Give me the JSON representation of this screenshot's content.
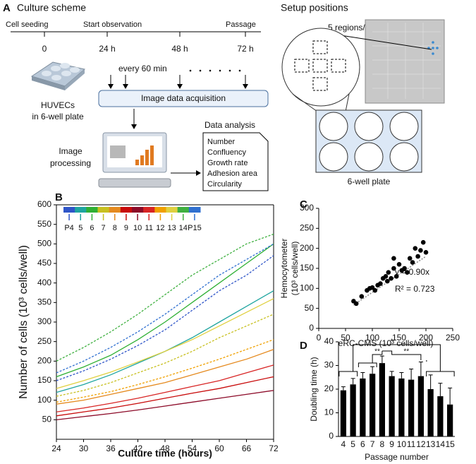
{
  "panel_a": {
    "letter": "A",
    "title": "Culture scheme",
    "timeline_labels": [
      "Cell seeding",
      "Start observation",
      "Passage"
    ],
    "times": [
      "0",
      "24 h",
      "48 h",
      "72 h"
    ],
    "interval": "every 60 min",
    "acquisition": "Image data acquisition",
    "cells": [
      "HUVECs",
      "in 6-well plate"
    ],
    "processing": [
      "Image",
      "processing"
    ],
    "analysis_title": "Data analysis",
    "analysis_items": [
      "Number",
      "Confluency",
      "Growth rate",
      "Adhesion area",
      "Circularity"
    ],
    "setup_title": "Setup positions",
    "regions": "5 regions/well",
    "plate": "6-well plate"
  },
  "chart_data": [
    {
      "type": "line",
      "letter": "B",
      "xlabel": "Culture time (hours)",
      "ylabel": "Number of cells (10³ cells/well)",
      "x": [
        24,
        30,
        36,
        42,
        48,
        54,
        60,
        66,
        72
      ],
      "xlim": [
        24,
        72
      ],
      "xticks": [
        24,
        30,
        36,
        42,
        48,
        54,
        60,
        66,
        72
      ],
      "ylim": [
        0,
        600
      ],
      "yticks": [
        50,
        100,
        150,
        200,
        250,
        300,
        350,
        400,
        450,
        500,
        550,
        600
      ],
      "series": [
        {
          "name": "P4",
          "color": "#2f55c8",
          "dashed": true,
          "values": [
            150,
            175,
            205,
            240,
            280,
            330,
            380,
            420,
            470
          ]
        },
        {
          "name": "5",
          "color": "#1fa5a0",
          "dashed": false,
          "values": [
            120,
            140,
            165,
            195,
            225,
            260,
            300,
            340,
            380
          ]
        },
        {
          "name": "6",
          "color": "#2fb034",
          "dashed": false,
          "values": [
            160,
            185,
            215,
            255,
            300,
            350,
            400,
            450,
            500
          ]
        },
        {
          "name": "7",
          "color": "#c8c020",
          "dashed": true,
          "values": [
            110,
            125,
            145,
            170,
            195,
            225,
            260,
            290,
            320
          ]
        },
        {
          "name": "8",
          "color": "#e58a1f",
          "dashed": false,
          "values": [
            90,
            100,
            115,
            130,
            145,
            165,
            185,
            205,
            230
          ]
        },
        {
          "name": "9",
          "color": "#c80a0a",
          "dashed": false,
          "values": [
            60,
            70,
            80,
            92,
            105,
            118,
            130,
            145,
            160
          ]
        },
        {
          "name": "10",
          "color": "#8c0a28",
          "dashed": false,
          "values": [
            50,
            58,
            66,
            75,
            85,
            95,
            105,
            115,
            125
          ]
        },
        {
          "name": "11",
          "color": "#d82525",
          "dashed": false,
          "values": [
            70,
            80,
            92,
            105,
            120,
            135,
            150,
            170,
            190
          ]
        },
        {
          "name": "12",
          "color": "#f0a000",
          "dashed": true,
          "values": [
            95,
            108,
            122,
            140,
            160,
            182,
            205,
            230,
            255
          ]
        },
        {
          "name": "13",
          "color": "#e0d040",
          "dashed": false,
          "values": [
            130,
            150,
            172,
            198,
            225,
            255,
            290,
            325,
            360
          ]
        },
        {
          "name": "14",
          "color": "#3fb040",
          "dashed": true,
          "values": [
            200,
            235,
            275,
            320,
            370,
            420,
            460,
            500,
            525
          ]
        },
        {
          "name": "P15",
          "color": "#3070d0",
          "dashed": true,
          "values": [
            170,
            200,
            235,
            275,
            320,
            370,
            420,
            460,
            500
          ]
        }
      ]
    },
    {
      "type": "scatter",
      "letter": "C",
      "xlabel": "eRC-CMS (10³ cells/well)",
      "ylabel": [
        "Hemocytometer",
        "(10³ cells/well)"
      ],
      "xlim": [
        0,
        250
      ],
      "xticks": [
        0,
        50,
        100,
        150,
        200,
        250
      ],
      "ylim": [
        0,
        300
      ],
      "yticks": [
        0,
        50,
        100,
        150,
        200,
        250,
        300
      ],
      "color": "#000000",
      "x": [
        65,
        70,
        80,
        90,
        95,
        100,
        105,
        110,
        115,
        120,
        125,
        128,
        130,
        135,
        140,
        140,
        145,
        150,
        155,
        160,
        165,
        170,
        175,
        180,
        185,
        190,
        195,
        200
      ],
      "values": [
        68,
        62,
        80,
        95,
        100,
        102,
        95,
        108,
        112,
        125,
        130,
        118,
        140,
        125,
        150,
        175,
        130,
        160,
        145,
        150,
        140,
        175,
        165,
        200,
        180,
        195,
        215,
        190
      ],
      "trend": {
        "slope": 0.9,
        "label": "y = 0.90x"
      },
      "r2": "R² = 0.723"
    },
    {
      "type": "bar",
      "letter": "D",
      "xlabel": "Passage number",
      "ylabel": "Doubling time (h)",
      "categories": [
        "4",
        "5",
        "6",
        "7",
        "8",
        "9",
        "10",
        "11",
        "12",
        "13",
        "14",
        "15"
      ],
      "values": [
        19.5,
        22,
        24.5,
        26.5,
        31,
        25.5,
        24.5,
        24,
        25.5,
        20,
        17,
        13.5
      ],
      "errors": [
        1.5,
        2.5,
        2.5,
        3,
        3,
        2,
        2.5,
        4.5,
        6,
        6,
        5.5,
        7
      ],
      "color": "#000000",
      "ylim": [
        0,
        40
      ],
      "yticks": [
        0,
        10,
        20,
        30,
        40
      ],
      "significance": [
        "*",
        "**",
        "**",
        "*"
      ]
    }
  ]
}
